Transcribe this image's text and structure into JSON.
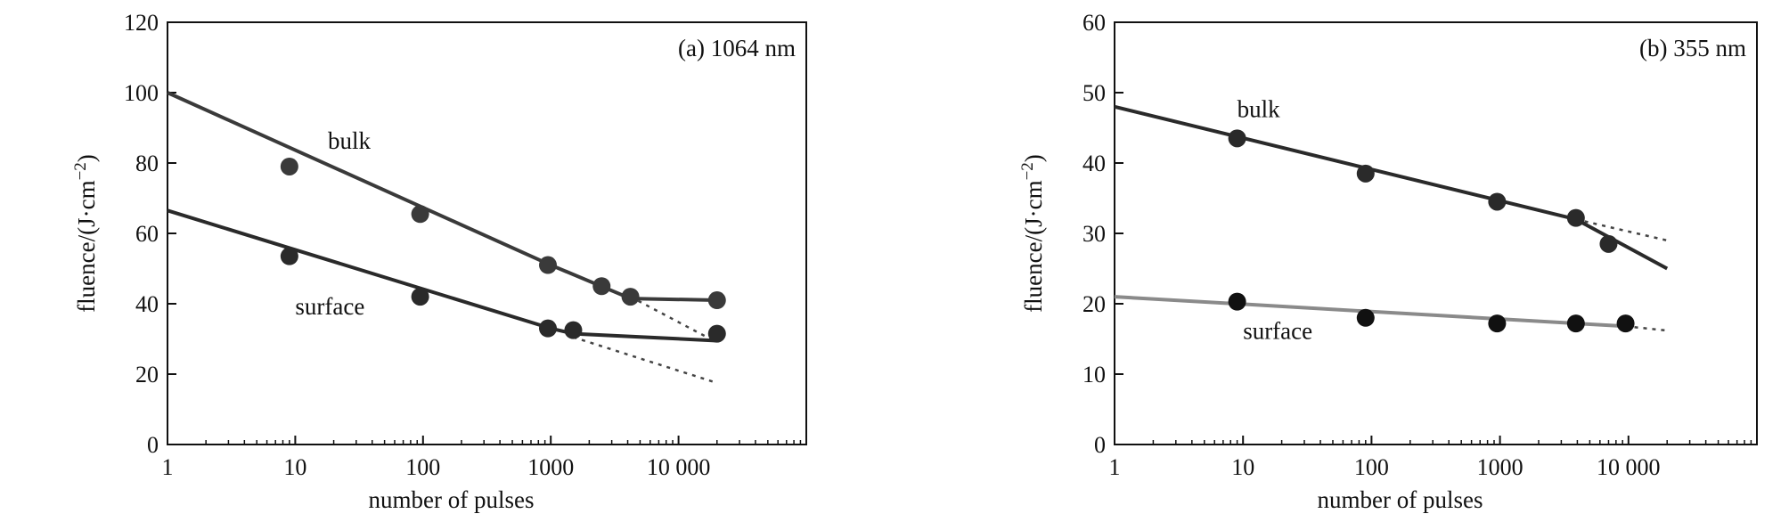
{
  "chart_data": [
    {
      "type": "scatter",
      "title": "(a) 1064 nm",
      "xlabel": "number of pulses",
      "ylabel": "fluence/(J·cm",
      "ylabel_sup": "−2",
      "ylabel_close": ")",
      "xscale": "log",
      "xlim": [
        1,
        100000
      ],
      "ylim": [
        0,
        120
      ],
      "xticks": [
        {
          "value": 1,
          "label": "1"
        },
        {
          "value": 10,
          "label": "10"
        },
        {
          "value": 100,
          "label": "100"
        },
        {
          "value": 1000,
          "label": "1000"
        },
        {
          "value": 10000,
          "label": "10 000"
        }
      ],
      "yticks": [
        {
          "value": 0,
          "label": "0"
        },
        {
          "value": 20,
          "label": "20"
        },
        {
          "value": 40,
          "label": "40"
        },
        {
          "value": 60,
          "label": "60"
        },
        {
          "value": 80,
          "label": "80"
        },
        {
          "value": 100,
          "label": "100"
        },
        {
          "value": 120,
          "label": "120"
        }
      ],
      "grid": false,
      "series": [
        {
          "name": "bulk",
          "color": "#3a3a3a",
          "x": [
            9,
            95,
            950,
            2500,
            4200,
            20000
          ],
          "y": [
            79,
            65.5,
            51,
            45,
            42,
            41
          ],
          "fit": [
            [
              1,
              100
            ],
            [
              1000,
              51
            ],
            [
              4200,
              41.5
            ],
            [
              20000,
              41
            ]
          ],
          "extrapolation": [
            [
              4200,
              42
            ],
            [
              20000,
              29
            ]
          ],
          "label_pos": [
            18,
            84
          ]
        },
        {
          "name": "surface",
          "color": "#2a2a2a",
          "x": [
            9,
            95,
            950,
            1500,
            20000
          ],
          "y": [
            53.5,
            42,
            33,
            32.5,
            31.5
          ],
          "fit": [
            [
              1,
              66.5
            ],
            [
              1000,
              33
            ],
            [
              1500,
              31.5
            ],
            [
              20000,
              29.5
            ]
          ],
          "extrapolation": [
            [
              1500,
              30.5
            ],
            [
              20000,
              17.5
            ]
          ],
          "label_pos": [
            10,
            37
          ]
        }
      ]
    },
    {
      "type": "scatter",
      "title": "(b) 355 nm",
      "xlabel": "number of pulses",
      "ylabel": "fluence/(J·cm",
      "ylabel_sup": "−2",
      "ylabel_close": ")",
      "xscale": "log",
      "xlim": [
        1,
        100000
      ],
      "ylim": [
        0,
        60
      ],
      "xticks": [
        {
          "value": 1,
          "label": "1"
        },
        {
          "value": 10,
          "label": "10"
        },
        {
          "value": 100,
          "label": "100"
        },
        {
          "value": 1000,
          "label": "1000"
        },
        {
          "value": 10000,
          "label": "10 000"
        }
      ],
      "yticks": [
        {
          "value": 0,
          "label": "0"
        },
        {
          "value": 10,
          "label": "10"
        },
        {
          "value": 20,
          "label": "20"
        },
        {
          "value": 30,
          "label": "30"
        },
        {
          "value": 40,
          "label": "40"
        },
        {
          "value": 50,
          "label": "50"
        },
        {
          "value": 60,
          "label": "60"
        }
      ],
      "grid": false,
      "series": [
        {
          "name": "bulk",
          "color": "#2a2a2a",
          "x": [
            9,
            90,
            950,
            3900,
            7000
          ],
          "y": [
            43.5,
            38.5,
            34.5,
            32.2,
            28.5
          ],
          "fit": [
            [
              1,
              48
            ],
            [
              3900,
              32
            ],
            [
              20000,
              25
            ]
          ],
          "extrapolation": [
            [
              3900,
              32
            ],
            [
              20000,
              29
            ]
          ],
          "label_pos": [
            9,
            46.5
          ]
        },
        {
          "name": "surface",
          "color": "#111111",
          "line_color": "#8a8a8a",
          "x": [
            9,
            90,
            950,
            3900,
            9500
          ],
          "y": [
            20.3,
            18,
            17.2,
            17.2,
            17.2
          ],
          "fit": [
            [
              1,
              21
            ],
            [
              9500,
              16.8
            ]
          ],
          "extrapolation": [
            [
              9500,
              16.8
            ],
            [
              20000,
              16.2
            ]
          ],
          "label_pos": [
            10,
            15
          ]
        }
      ]
    }
  ]
}
